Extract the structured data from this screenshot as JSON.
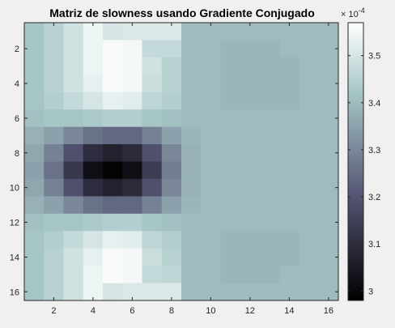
{
  "chart_data": {
    "type": "heatmap",
    "title": "Matriz de slowness usando Gradiente Conjugado",
    "xlabel": "",
    "ylabel": "",
    "x_range": [
      0.5,
      16.5
    ],
    "y_range": [
      0.5,
      16.5
    ],
    "y_direction": "reversed",
    "x_ticks": [
      2,
      4,
      6,
      8,
      10,
      12,
      14,
      16
    ],
    "y_ticks": [
      2,
      4,
      6,
      8,
      10,
      12,
      14,
      16
    ],
    "colorbar": {
      "limits": [
        2.98,
        3.57
      ],
      "ticks": [
        3.0,
        3.1,
        3.2,
        3.3,
        3.4,
        3.5
      ],
      "tick_labels": [
        "3",
        "3.1",
        "3.2",
        "3.3",
        "3.4",
        "3.5"
      ],
      "exponent_label": "× 10",
      "exponent": "-4",
      "colormap": "bone"
    },
    "values_scale": "x 10^-4",
    "matrix": [
      [
        3.42,
        3.45,
        3.49,
        3.54,
        3.5,
        3.51,
        3.51,
        3.51,
        3.4,
        3.4,
        3.4,
        3.4,
        3.4,
        3.4,
        3.4,
        3.4
      ],
      [
        3.42,
        3.45,
        3.49,
        3.54,
        3.56,
        3.55,
        3.47,
        3.47,
        3.4,
        3.4,
        3.39,
        3.39,
        3.39,
        3.4,
        3.4,
        3.4
      ],
      [
        3.42,
        3.45,
        3.49,
        3.54,
        3.56,
        3.55,
        3.49,
        3.45,
        3.4,
        3.4,
        3.39,
        3.39,
        3.39,
        3.39,
        3.4,
        3.4
      ],
      [
        3.42,
        3.45,
        3.49,
        3.53,
        3.56,
        3.55,
        3.48,
        3.45,
        3.4,
        3.4,
        3.39,
        3.39,
        3.39,
        3.39,
        3.4,
        3.4
      ],
      [
        3.42,
        3.44,
        3.47,
        3.5,
        3.53,
        3.52,
        3.46,
        3.44,
        3.4,
        3.4,
        3.39,
        3.39,
        3.39,
        3.39,
        3.4,
        3.4
      ],
      [
        3.41,
        3.42,
        3.42,
        3.43,
        3.44,
        3.44,
        3.42,
        3.41,
        3.4,
        3.4,
        3.4,
        3.4,
        3.4,
        3.4,
        3.4,
        3.4
      ],
      [
        3.38,
        3.35,
        3.3,
        3.26,
        3.24,
        3.24,
        3.29,
        3.35,
        3.39,
        3.4,
        3.4,
        3.4,
        3.4,
        3.4,
        3.4,
        3.4
      ],
      [
        3.36,
        3.29,
        3.19,
        3.1,
        3.07,
        3.09,
        3.19,
        3.3,
        3.38,
        3.4,
        3.4,
        3.4,
        3.4,
        3.4,
        3.4,
        3.4
      ],
      [
        3.35,
        3.26,
        3.13,
        3.02,
        2.99,
        3.02,
        3.14,
        3.28,
        3.38,
        3.4,
        3.4,
        3.4,
        3.4,
        3.4,
        3.4,
        3.4
      ],
      [
        3.36,
        3.29,
        3.19,
        3.1,
        3.07,
        3.09,
        3.19,
        3.3,
        3.38,
        3.4,
        3.4,
        3.4,
        3.4,
        3.4,
        3.4,
        3.4
      ],
      [
        3.38,
        3.35,
        3.3,
        3.26,
        3.24,
        3.24,
        3.29,
        3.35,
        3.39,
        3.4,
        3.4,
        3.4,
        3.4,
        3.4,
        3.4,
        3.4
      ],
      [
        3.41,
        3.42,
        3.42,
        3.43,
        3.44,
        3.44,
        3.42,
        3.41,
        3.4,
        3.4,
        3.4,
        3.4,
        3.4,
        3.4,
        3.4,
        3.4
      ],
      [
        3.42,
        3.44,
        3.47,
        3.5,
        3.53,
        3.52,
        3.46,
        3.44,
        3.4,
        3.4,
        3.39,
        3.39,
        3.39,
        3.39,
        3.4,
        3.4
      ],
      [
        3.42,
        3.45,
        3.49,
        3.53,
        3.56,
        3.55,
        3.48,
        3.45,
        3.4,
        3.4,
        3.39,
        3.39,
        3.39,
        3.39,
        3.4,
        3.4
      ],
      [
        3.42,
        3.45,
        3.49,
        3.54,
        3.56,
        3.55,
        3.47,
        3.46,
        3.4,
        3.4,
        3.39,
        3.39,
        3.39,
        3.4,
        3.4,
        3.4
      ],
      [
        3.42,
        3.45,
        3.49,
        3.54,
        3.5,
        3.51,
        3.51,
        3.51,
        3.4,
        3.4,
        3.4,
        3.4,
        3.4,
        3.4,
        3.4,
        3.4
      ]
    ]
  }
}
